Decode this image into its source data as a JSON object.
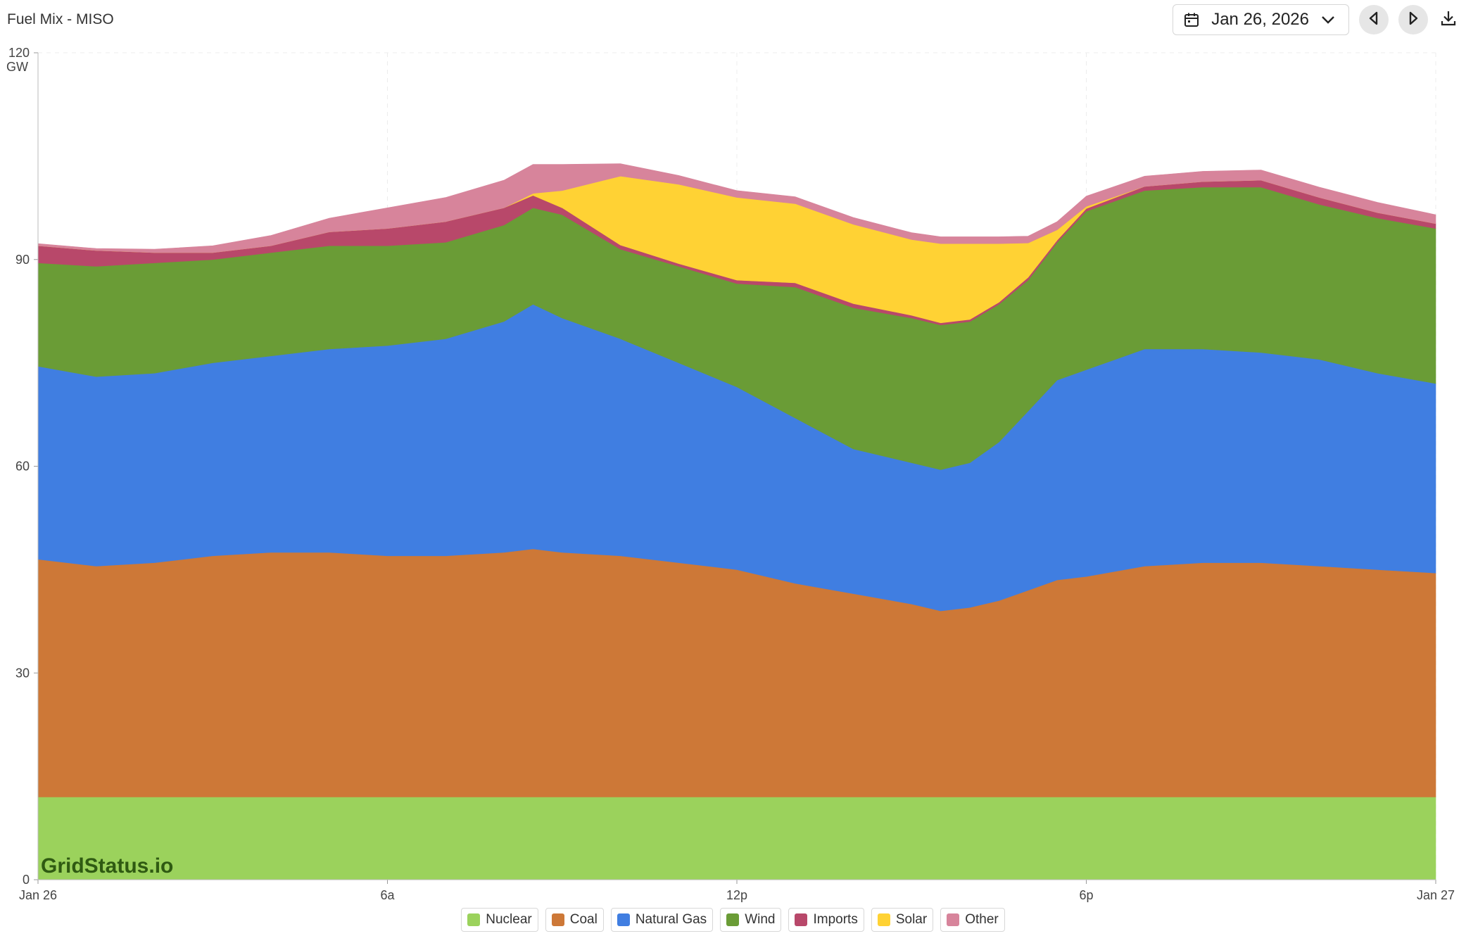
{
  "header": {
    "title": "Fuel Mix - MISO",
    "date_label": "Jan 26, 2026"
  },
  "icons": {
    "calendar": "calendar-icon",
    "dropdown": "chevron-down-icon",
    "prev": "previous-day-icon",
    "next": "next-day-icon",
    "download": "download-icon"
  },
  "watermark": "GridStatus.io",
  "chart_data": {
    "type": "area",
    "stacked": true,
    "title": "Fuel Mix - MISO",
    "ylabel": "GW",
    "ylim": [
      0,
      120
    ],
    "y_ticks": [
      0,
      30,
      60,
      90,
      120
    ],
    "xlim": [
      0,
      24
    ],
    "x_ticks": [
      {
        "hour": 0,
        "label": "Jan 26"
      },
      {
        "hour": 6,
        "label": "6a"
      },
      {
        "hour": 12,
        "label": "12p"
      },
      {
        "hour": 18,
        "label": "6p"
      },
      {
        "hour": 24,
        "label": "Jan 27"
      }
    ],
    "grid": true,
    "legend_position": "bottom-center",
    "x_hours": [
      0,
      1,
      2,
      3,
      4,
      5,
      6,
      7,
      8,
      8.5,
      9,
      10,
      11,
      12,
      13,
      14,
      15,
      15.5,
      16,
      16.5,
      17,
      17.5,
      18,
      19,
      20,
      21,
      22,
      23,
      24
    ],
    "series": [
      {
        "name": "Nuclear",
        "color": "#9bd25c",
        "values": [
          12,
          12,
          12,
          12,
          12,
          12,
          12,
          12,
          12,
          12,
          12,
          12,
          12,
          12,
          12,
          12,
          12,
          12,
          12,
          12,
          12,
          12,
          12,
          12,
          12,
          12,
          12,
          12,
          12
        ]
      },
      {
        "name": "Coal",
        "color": "#cd7837",
        "values": [
          34.5,
          33.5,
          34,
          35,
          35.5,
          35.5,
          35,
          35,
          35.5,
          36,
          35.5,
          35,
          34,
          33,
          31,
          29.5,
          28,
          27,
          27.5,
          28.5,
          30,
          31.5,
          32,
          33.5,
          34,
          34,
          33.5,
          33,
          32.5
        ]
      },
      {
        "name": "Natural Gas",
        "color": "#407ee1",
        "values": [
          28,
          27.5,
          27.5,
          28,
          28.5,
          29.5,
          30.5,
          31.5,
          33.5,
          35.5,
          34,
          31.5,
          29,
          26.5,
          24,
          21,
          20.5,
          20.5,
          21,
          23,
          26,
          29,
          30,
          31.5,
          31,
          30.5,
          30,
          28.5,
          27.5
        ]
      },
      {
        "name": "Wind",
        "color": "#6a9c36",
        "values": [
          15,
          16,
          16,
          15,
          15,
          15,
          14.5,
          14,
          14,
          14,
          15,
          13,
          14,
          15,
          19,
          20.5,
          21,
          21,
          20.5,
          20,
          19,
          20,
          23,
          23,
          23.5,
          24,
          22.5,
          22.5,
          22.5
        ]
      },
      {
        "name": "Imports",
        "color": "#b8486a",
        "values": [
          2.5,
          2.3,
          1.5,
          1,
          1,
          2,
          2.5,
          3,
          2.5,
          1.8,
          1,
          0.6,
          0.4,
          0.5,
          0.6,
          0.6,
          0.4,
          0.3,
          0.3,
          0.3,
          0.4,
          0.3,
          0.4,
          0.6,
          0.8,
          1,
          1,
          0.8,
          0.7
        ]
      },
      {
        "name": "Solar",
        "color": "#ffd234",
        "values": [
          0,
          0,
          0,
          0,
          0,
          0,
          0,
          0,
          0,
          0.3,
          2.5,
          10,
          11.5,
          12,
          11.5,
          11.5,
          11,
          11.5,
          11,
          8.5,
          5,
          1.5,
          0.3,
          0,
          0,
          0,
          0,
          0,
          0
        ]
      },
      {
        "name": "Other",
        "color": "#d7849b",
        "values": [
          0.3,
          0.3,
          0.5,
          1,
          1.5,
          2,
          3,
          3.5,
          4,
          4.2,
          3.8,
          1.8,
          1.3,
          1,
          1,
          1,
          1,
          1,
          1,
          1,
          1,
          1.2,
          1.5,
          1.5,
          1.5,
          1.5,
          1.5,
          1.5,
          1.3
        ]
      }
    ]
  }
}
